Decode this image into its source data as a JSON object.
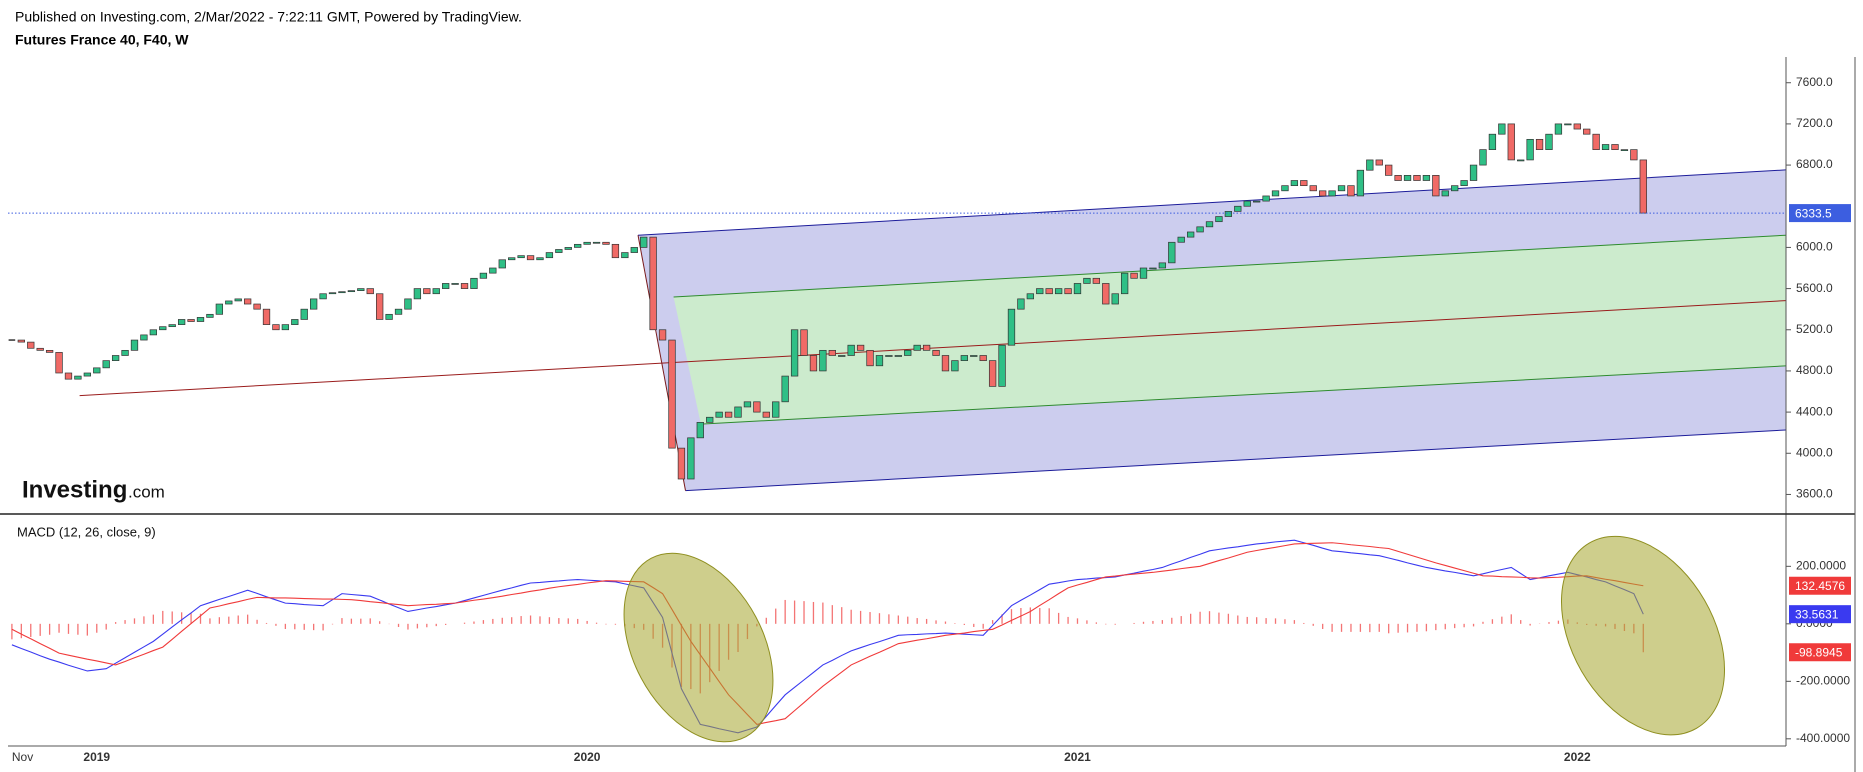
{
  "chart_data": [
    {
      "type": "candlestick",
      "subtitle": "Published on Investing.com, 2/Mar/2022 - 7:22:11 GMT, Powered by TradingView.",
      "title": "Futures France 40, F40, W",
      "watermark": [
        "Investing",
        ".com"
      ],
      "categories": [
        "Nov",
        null,
        null,
        null,
        null,
        null,
        null,
        null,
        null,
        "2019",
        null,
        null,
        null,
        null,
        null,
        null,
        null,
        null,
        null,
        null,
        null,
        null,
        null,
        null,
        null,
        null,
        null,
        null,
        null,
        null,
        null,
        null,
        null,
        null,
        null,
        null,
        null,
        null,
        null,
        null,
        null,
        null,
        null,
        null,
        null,
        null,
        null,
        null,
        null,
        null,
        null,
        null,
        null,
        null,
        null,
        null,
        null,
        null,
        null,
        null,
        null,
        "2020",
        null,
        null,
        null,
        null,
        null,
        null,
        null,
        null,
        null,
        null,
        null,
        null,
        null,
        null,
        null,
        null,
        null,
        null,
        null,
        null,
        null,
        null,
        null,
        null,
        null,
        null,
        null,
        null,
        null,
        null,
        null,
        null,
        null,
        null,
        null,
        null,
        null,
        null,
        null,
        null,
        null,
        null,
        null,
        null,
        null,
        null,
        null,
        null,
        null,
        null,
        null,
        "2021",
        null,
        null,
        null,
        null,
        null,
        null,
        null,
        null,
        null,
        null,
        null,
        null,
        null,
        null,
        null,
        null,
        null,
        null,
        null,
        null,
        null,
        null,
        null,
        null,
        null,
        null,
        null,
        null,
        null,
        null,
        null,
        null,
        null,
        null,
        null,
        null,
        null,
        null,
        null,
        null,
        null,
        null,
        null,
        null,
        null,
        null,
        null,
        null,
        null,
        null,
        null,
        null,
        "2022",
        null,
        null,
        null,
        null,
        null,
        null,
        null
      ],
      "values": [
        5100,
        5080,
        5020,
        5000,
        4980,
        4780,
        4720,
        4750,
        4780,
        4830,
        4900,
        4950,
        5000,
        5100,
        5150,
        5200,
        5230,
        5250,
        5300,
        5280,
        5320,
        5350,
        5450,
        5480,
        5500,
        5450,
        5400,
        5250,
        5200,
        5250,
        5300,
        5400,
        5500,
        5550,
        5560,
        5570,
        5580,
        5600,
        5550,
        5300,
        5350,
        5400,
        5500,
        5600,
        5550,
        5600,
        5650,
        5650,
        5600,
        5700,
        5750,
        5800,
        5880,
        5900,
        5920,
        5880,
        5900,
        5950,
        5980,
        6000,
        6030,
        6050,
        6050,
        6030,
        5900,
        5950,
        6000,
        6100,
        5200,
        5100,
        4050,
        3750,
        4150,
        4300,
        4350,
        4400,
        4350,
        4450,
        4500,
        4400,
        4350,
        4500,
        4750,
        5200,
        4950,
        4800,
        5000,
        4950,
        4950,
        5050,
        5000,
        4850,
        4950,
        4950,
        4950,
        5000,
        5050,
        5000,
        4950,
        4800,
        4900,
        4950,
        4950,
        4900,
        4650,
        5050,
        5400,
        5500,
        5550,
        5600,
        5550,
        5600,
        5550,
        5650,
        5700,
        5650,
        5450,
        5550,
        5750,
        5700,
        5800,
        5800,
        5850,
        6050,
        6100,
        6150,
        6200,
        6250,
        6300,
        6350,
        6400,
        6450,
        6450,
        6500,
        6550,
        6600,
        6650,
        6600,
        6550,
        6500,
        6550,
        6600,
        6500,
        6750,
        6850,
        6800,
        6700,
        6650,
        6700,
        6650,
        6700,
        6500,
        6550,
        6600,
        6650,
        6800,
        6950,
        7100,
        7200,
        6850,
        6850,
        7050,
        6950,
        7100,
        7200,
        7200,
        7150,
        7100,
        6950,
        7000,
        6950,
        6950,
        6850,
        6333.5
      ],
      "up_color": "#2fbf86",
      "down_color": "#f06a66",
      "last_value_color": "#3c5ee0",
      "ylim": [
        3410,
        7850
      ],
      "yticks": [
        {
          "value": 3600,
          "label": "3600.0"
        },
        {
          "value": 4000,
          "label": "4000.0"
        },
        {
          "value": 4400,
          "label": "4400.0"
        },
        {
          "value": 4800,
          "label": "4800.0"
        },
        {
          "value": 5200,
          "label": "5200.0"
        },
        {
          "value": 5600,
          "label": "5600.0"
        },
        {
          "value": 6000,
          "label": "6000.0"
        },
        {
          "value": 6800,
          "label": "6800.0"
        },
        {
          "value": 7200,
          "label": "7200.0"
        },
        {
          "value": 7600,
          "label": "7600.0"
        }
      ]
    },
    {
      "type": "line",
      "title": "MACD (12, 26, close, 9)",
      "series": [
        {
          "color": "#3a3af0",
          "values": [
            -73,
            -86,
            -98,
            -111,
            -123,
            -133,
            -144,
            -154,
            -164,
            -160,
            -156,
            -137,
            -118,
            -99,
            -80,
            -61,
            -36,
            -11,
            14,
            38,
            63,
            74,
            85,
            95,
            106,
            117,
            106,
            94,
            83,
            72,
            70,
            67,
            65,
            63,
            84,
            105,
            102,
            99,
            96,
            83,
            69,
            56,
            43,
            49,
            55,
            60,
            66,
            72,
            81,
            90,
            99,
            108,
            117,
            125,
            134,
            142,
            144,
            147,
            149,
            152,
            154,
            152,
            150,
            148,
            146,
            139,
            132,
            125,
            74,
            22,
            -102,
            -226,
            -288,
            -350,
            -357,
            -365,
            -372,
            -379,
            -369,
            -359,
            -322,
            -284,
            -247,
            -221,
            -195,
            -169,
            -143,
            -127,
            -110,
            -94,
            -83,
            -72,
            -62,
            -51,
            -40,
            -38,
            -37,
            -35,
            -34,
            -32,
            -34,
            -36,
            -38,
            -40,
            -6,
            29,
            63,
            82,
            100,
            119,
            138,
            143,
            149,
            154,
            156,
            159,
            161,
            163,
            170,
            176,
            183,
            189,
            196,
            208,
            219,
            231,
            242,
            254,
            259,
            264,
            268,
            273,
            278,
            281,
            285,
            288,
            291,
            282,
            273,
            263,
            254,
            251,
            247,
            244,
            240,
            237,
            229,
            221,
            212,
            204,
            196,
            190,
            184,
            179,
            173,
            167,
            174,
            182,
            189,
            196,
            175,
            154,
            160,
            167,
            173,
            179,
            171,
            163,
            154,
            146,
            132,
            119,
            105,
            33.5631
          ]
        },
        {
          "color": "#f03a3a",
          "values": [
            -19,
            -36,
            -52,
            -69,
            -85,
            -102,
            -109,
            -116,
            -123,
            -129,
            -136,
            -143,
            -131,
            -118,
            -106,
            -93,
            -81,
            -54,
            -26,
            1,
            28,
            55,
            62,
            70,
            77,
            85,
            92,
            91,
            90,
            90,
            89,
            88,
            87,
            86,
            86,
            85,
            84,
            81,
            77,
            74,
            70,
            67,
            63,
            65,
            67,
            68,
            70,
            72,
            77,
            82,
            86,
            91,
            96,
            102,
            107,
            113,
            118,
            124,
            129,
            133,
            137,
            142,
            146,
            150,
            149,
            148,
            147,
            146,
            126,
            105,
            50,
            -6,
            -61,
            -108,
            -154,
            -201,
            -247,
            -281,
            -316,
            -350,
            -343,
            -337,
            -330,
            -302,
            -274,
            -245,
            -217,
            -192,
            -168,
            -143,
            -128,
            -113,
            -99,
            -84,
            -69,
            -63,
            -57,
            -52,
            -46,
            -40,
            -36,
            -32,
            -27,
            -23,
            -19,
            -4,
            12,
            27,
            43,
            64,
            84,
            105,
            125,
            135,
            144,
            154,
            163,
            166,
            170,
            173,
            176,
            179,
            183,
            187,
            192,
            196,
            200,
            210,
            220,
            229,
            239,
            249,
            255,
            261,
            266,
            272,
            278,
            279,
            280,
            281,
            282,
            279,
            275,
            272,
            269,
            265,
            262,
            252,
            242,
            232,
            222,
            212,
            203,
            194,
            185,
            176,
            167,
            166,
            164,
            163,
            162,
            160,
            159,
            161,
            162,
            164,
            166,
            167,
            161,
            155,
            150,
            144,
            138,
            132.4576
          ]
        }
      ],
      "histogram": {
        "color": "#f03a3a",
        "values": [
          -54,
          -50,
          -46,
          -42,
          -38,
          -31,
          -35,
          -38,
          -41,
          -31,
          -20,
          6,
          13,
          19,
          26,
          32,
          45,
          43,
          40,
          37,
          35,
          19,
          23,
          25,
          29,
          32,
          14,
          3,
          -7,
          -18,
          -19,
          -21,
          -22,
          -23,
          -2,
          20,
          18,
          18,
          19,
          9,
          -1,
          -11,
          -20,
          -16,
          -12,
          -8,
          -4,
          0,
          4,
          8,
          13,
          17,
          21,
          23,
          27,
          29,
          26,
          23,
          20,
          19,
          17,
          10,
          4,
          -2,
          -3,
          -9,
          -15,
          -21,
          -52,
          -83,
          -152,
          -220,
          -227,
          -242,
          -203,
          -164,
          -125,
          -98,
          -53,
          -9,
          21,
          53,
          83,
          81,
          79,
          76,
          74,
          65,
          58,
          49,
          45,
          41,
          37,
          33,
          29,
          25,
          20,
          17,
          12,
          8,
          2,
          -4,
          -11,
          -17,
          13,
          33,
          51,
          55,
          57,
          55,
          54,
          38,
          24,
          19,
          12,
          5,
          -2,
          -3,
          0,
          3,
          7,
          10,
          13,
          21,
          27,
          35,
          42,
          44,
          39,
          35,
          29,
          24,
          23,
          20,
          19,
          16,
          13,
          3,
          -7,
          -18,
          -28,
          -28,
          -28,
          -28,
          -29,
          -28,
          -33,
          -31,
          -30,
          -28,
          -26,
          -22,
          -19,
          -15,
          -12,
          -9,
          7,
          16,
          25,
          33,
          13,
          -6,
          1,
          6,
          11,
          15,
          5,
          -4,
          -7,
          -9,
          -18,
          -25,
          -33,
          -98.8945
        ]
      },
      "ylim": [
        -425,
        382
      ],
      "yticks": [
        {
          "value": -400,
          "label": "-400.0000"
        },
        {
          "value": -200,
          "label": "-200.0000"
        },
        {
          "value": 0,
          "label": "0.0000"
        },
        {
          "value": 200,
          "label": "200.0000"
        }
      ]
    }
  ]
}
